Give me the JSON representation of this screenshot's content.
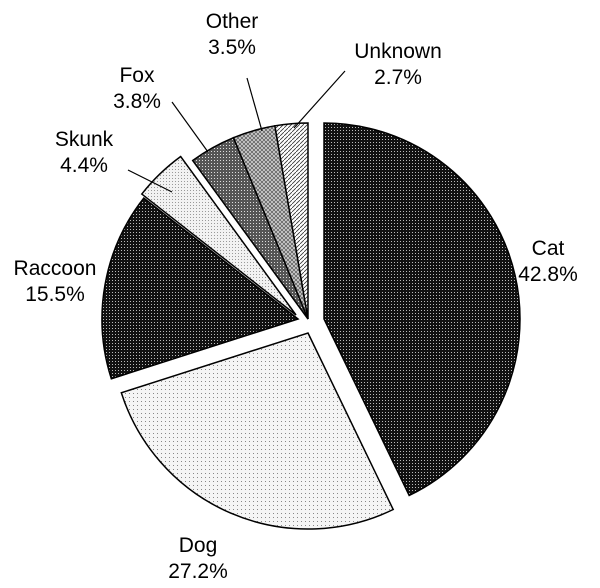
{
  "chart_data": {
    "type": "pie",
    "title": "",
    "slices": [
      {
        "label": "Cat",
        "value": 42.8,
        "value_text": "42.8%",
        "fill": "#1a1a1a",
        "pattern": "dense-dots",
        "exploded": true
      },
      {
        "label": "Dog",
        "value": 27.2,
        "value_text": "27.2%",
        "fill": "#eeeeee",
        "pattern": "fine-dots",
        "exploded": true
      },
      {
        "label": "Raccoon",
        "value": 15.5,
        "value_text": "15.5%",
        "fill": "#222222",
        "pattern": "dense-dots",
        "exploded": true
      },
      {
        "label": "Skunk",
        "value": 4.4,
        "value_text": "4.4%",
        "fill": "#f2f2f2",
        "pattern": "light-dots",
        "exploded": true
      },
      {
        "label": "Fox",
        "value": 3.8,
        "value_text": "3.8%",
        "fill": "#666666",
        "pattern": "medium-dots",
        "exploded": false
      },
      {
        "label": "Other",
        "value": 3.5,
        "value_text": "3.5%",
        "fill": "#b5b5b5",
        "pattern": "crosshatch",
        "exploded": false
      },
      {
        "label": "Unknown",
        "value": 2.7,
        "value_text": "2.7%",
        "fill": "#dddddd",
        "pattern": "diagonal-lines",
        "exploded": false
      }
    ],
    "start_angle_deg": 0,
    "direction": "clockwise",
    "legend": "none",
    "labels": "outside with leader lines"
  }
}
